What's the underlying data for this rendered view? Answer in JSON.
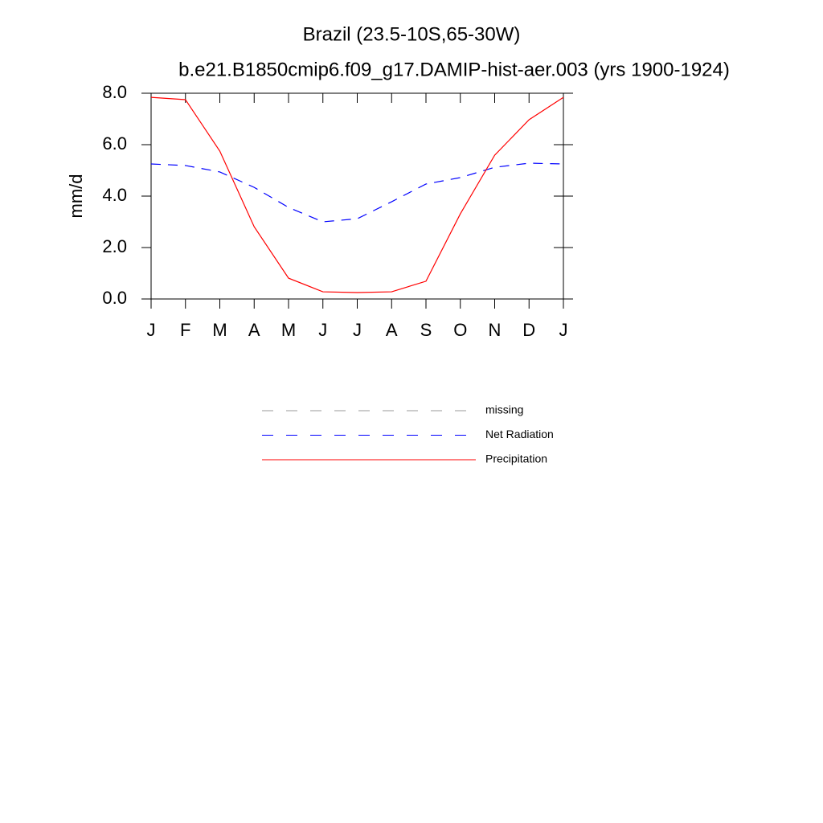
{
  "chart_data": {
    "type": "line",
    "title": "Brazil (23.5-10S,65-30W)",
    "subtitle": "b.e21.B1850cmip6.f09_g17.DAMIP-hist-aer.003 (yrs 1900-1924)",
    "y_label": "mm/d",
    "categories": [
      "J",
      "F",
      "M",
      "A",
      "M",
      "J",
      "J",
      "A",
      "S",
      "O",
      "N",
      "D",
      "J"
    ],
    "ylim": [
      0,
      8
    ],
    "yticks": [
      {
        "value": 0,
        "label": "0.0"
      },
      {
        "value": 2,
        "label": "2.0"
      },
      {
        "value": 4,
        "label": "4.0"
      },
      {
        "value": 6,
        "label": "6.0"
      },
      {
        "value": 8,
        "label": "8.0"
      }
    ],
    "series": [
      {
        "name": "missing",
        "color": "#999999",
        "dash": true,
        "values": [
          null,
          null,
          null,
          null,
          null,
          null,
          null,
          null,
          null,
          null,
          null,
          null,
          null
        ]
      },
      {
        "name": "Net Radiation",
        "color": "#0000ff",
        "dash": true,
        "values": [
          5.25,
          5.19,
          4.94,
          4.34,
          3.56,
          3.0,
          3.12,
          3.78,
          4.47,
          4.72,
          5.12,
          5.28,
          5.25
        ]
      },
      {
        "name": "Precipitation",
        "color": "#ff0000",
        "dash": false,
        "values": [
          7.84,
          7.75,
          5.75,
          2.81,
          0.81,
          0.28,
          0.25,
          0.28,
          0.69,
          3.31,
          5.59,
          6.97,
          7.84
        ]
      }
    ]
  }
}
